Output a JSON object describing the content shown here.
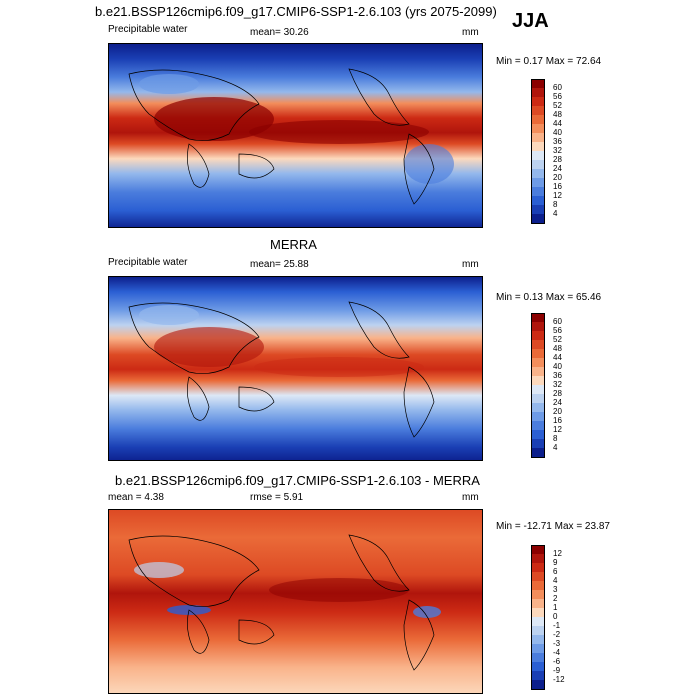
{
  "season": "JJA",
  "panel1": {
    "title": "b.e21.BSSP126cmip6.f09_g17.CMIP6-SSP1-2.6.103 (yrs 2075-2099)",
    "left_label": "Precipitable water",
    "mean_label": "mean=  30.26",
    "units": "mm",
    "minmax": "Min =   0.17 Max =  72.64"
  },
  "panel2": {
    "title": "MERRA",
    "left_label": "Precipitable water",
    "mean_label": "mean=  25.88",
    "units": "mm",
    "minmax": "Min =   0.13 Max =  65.46"
  },
  "panel3": {
    "title": "b.e21.BSSP126cmip6.f09_g17.CMIP6-SSP1-2.6.103 - MERRA",
    "mean_label": "mean =   4.38",
    "rmse_label": "rmse =   5.91",
    "units": "mm",
    "minmax": "Min = -12.71 Max =  23.87"
  },
  "colorbar_abs": {
    "levels": [
      "60",
      "56",
      "52",
      "48",
      "44",
      "40",
      "36",
      "32",
      "28",
      "24",
      "20",
      "16",
      "12",
      "8",
      "4"
    ],
    "colors": [
      "#8b0000",
      "#b0150c",
      "#cc2a14",
      "#dd4a24",
      "#ea6a38",
      "#f38e5c",
      "#f9b38a",
      "#fcd9bd",
      "#dde8f6",
      "#bcd2f0",
      "#94b8ec",
      "#6e9be6",
      "#4b7ddd",
      "#2b5fd3",
      "#1a3fb4",
      "#0c1f8c"
    ]
  },
  "colorbar_diff": {
    "levels": [
      "12",
      "9",
      "6",
      "4",
      "3",
      "2",
      "1",
      "0",
      "-1",
      "-2",
      "-3",
      "-4",
      "-6",
      "-9",
      "-12"
    ],
    "colors": [
      "#8b0000",
      "#b0150c",
      "#cc2a14",
      "#dd4a24",
      "#ea6a38",
      "#f38e5c",
      "#f9b38a",
      "#fcd9bd",
      "#dde8f6",
      "#bcd2f0",
      "#94b8ec",
      "#6e9be6",
      "#4b7ddd",
      "#2b5fd3",
      "#1a3fb4",
      "#0c1f8c"
    ]
  }
}
